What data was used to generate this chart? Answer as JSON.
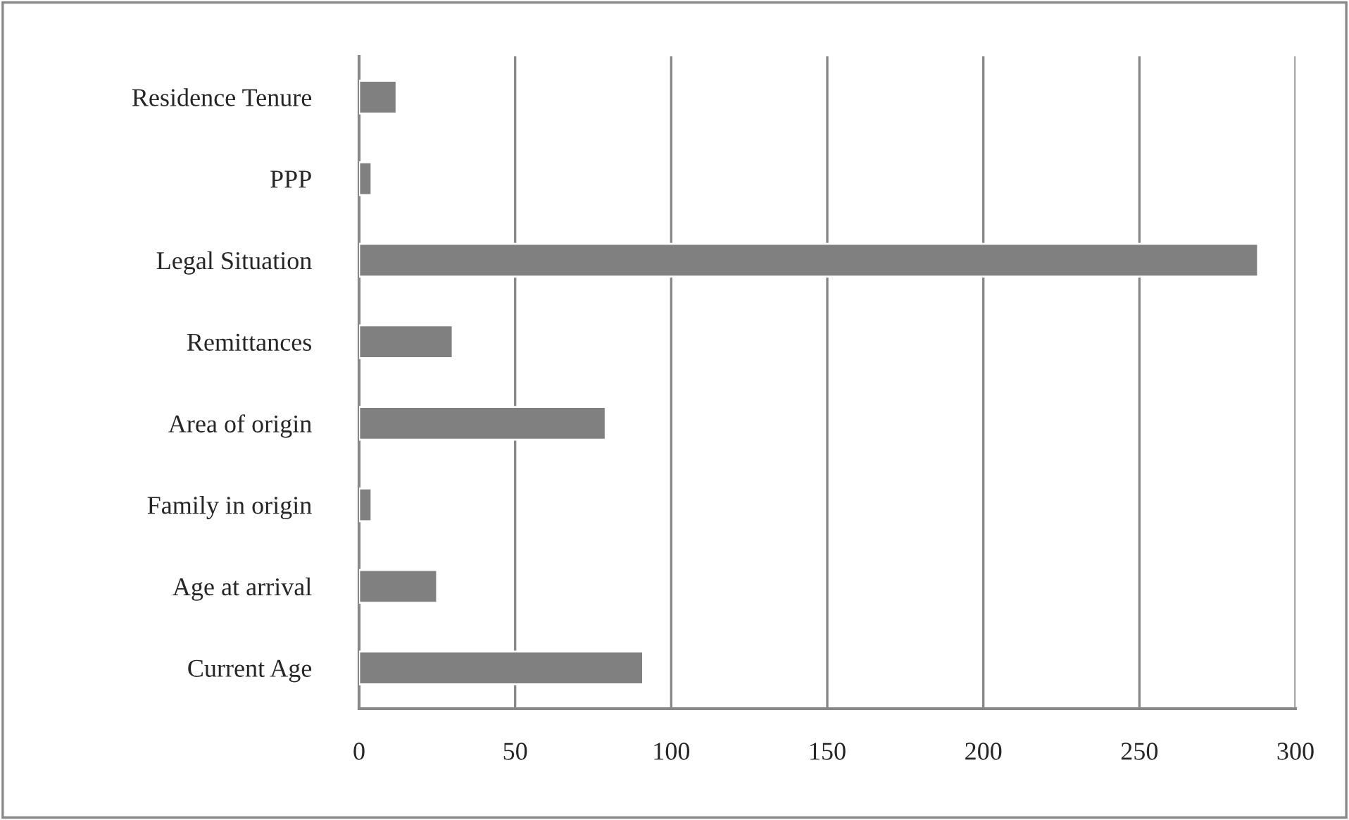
{
  "chart_data": {
    "type": "bar",
    "orientation": "horizontal",
    "categories": [
      "Residence Tenure",
      "PPP",
      "Legal Situation",
      "Remittances",
      "Area of origin",
      "Family in origin",
      "Age at arrival",
      "Current Age"
    ],
    "values": [
      12,
      4,
      288,
      30,
      79,
      4,
      25,
      91
    ],
    "color": "#808080",
    "xlim": [
      0,
      300
    ],
    "xticks": [
      0,
      50,
      100,
      150,
      200,
      250,
      300
    ],
    "grid": "x",
    "legend": false
  }
}
